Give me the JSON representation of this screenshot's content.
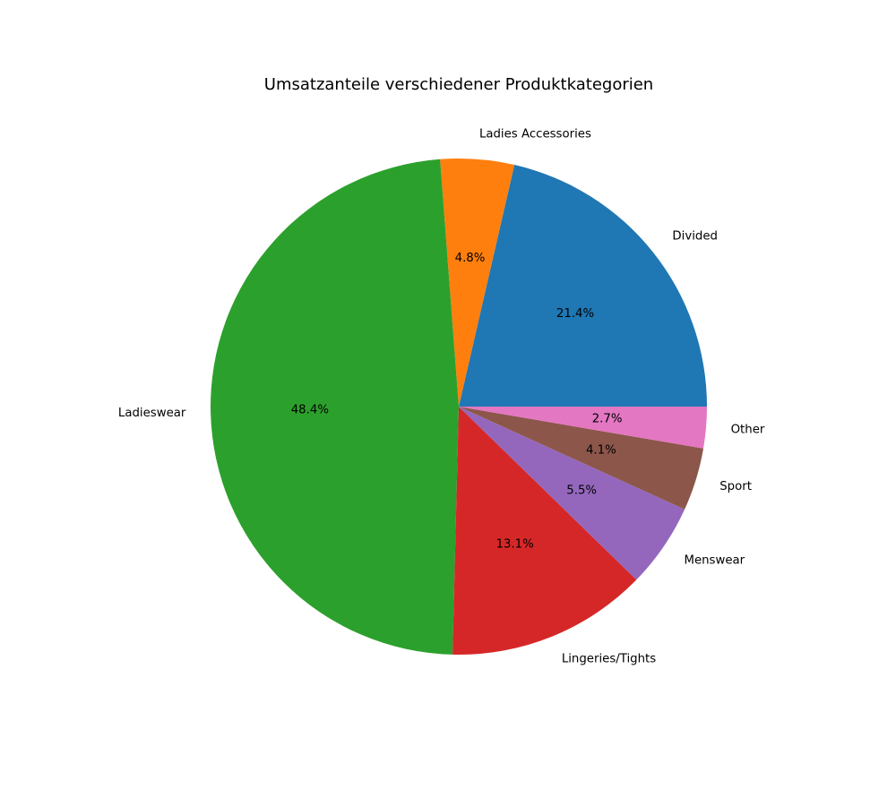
{
  "chart_data": {
    "type": "pie",
    "title": "Umsatzanteile verschiedener Produktkategorien",
    "categories": [
      "Divided",
      "Ladies Accessories",
      "Ladieswear",
      "Lingeries/Tights",
      "Menswear",
      "Sport",
      "Other"
    ],
    "values": [
      21.4,
      4.8,
      48.4,
      13.1,
      5.5,
      4.1,
      2.7
    ],
    "value_labels": [
      "21.4%",
      "4.8%",
      "48.4%",
      "13.1%",
      "5.5%",
      "4.1%",
      "2.7%"
    ],
    "colors": [
      "#1f77b4",
      "#ff7f0e",
      "#2ca02c",
      "#d62728",
      "#9467bd",
      "#8c564b",
      "#e377c2"
    ],
    "start_angle_deg": 0,
    "direction": "counterclockwise",
    "legend": "none"
  }
}
